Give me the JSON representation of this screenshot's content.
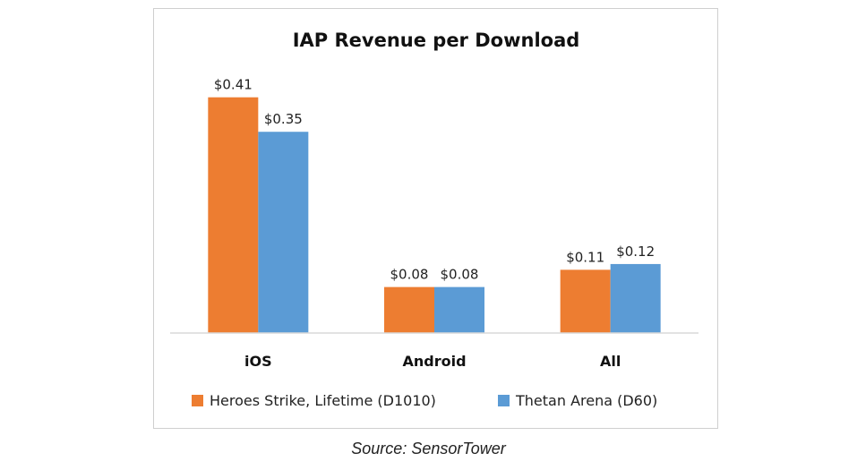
{
  "chart_data": {
    "type": "bar",
    "title": "IAP Revenue per Download",
    "categories": [
      "iOS",
      "Android",
      "All"
    ],
    "series": [
      {
        "name": "Heroes Strike, Lifetime (D1010)",
        "values": [
          0.41,
          0.08,
          0.11
        ],
        "labels": [
          "$0.41",
          "$0.08",
          "$0.11"
        ],
        "color": "#ED7D31"
      },
      {
        "name": "Thetan Arena (D60)",
        "values": [
          0.35,
          0.08,
          0.12
        ],
        "labels": [
          "$0.35",
          "$0.08",
          "$0.12"
        ],
        "color": "#5B9BD5"
      }
    ],
    "ylim": [
      0,
      0.45
    ],
    "grid": false,
    "legend": "bottom",
    "axis_color": "#d9d9d9"
  },
  "source_label": "Source: SensorTower"
}
